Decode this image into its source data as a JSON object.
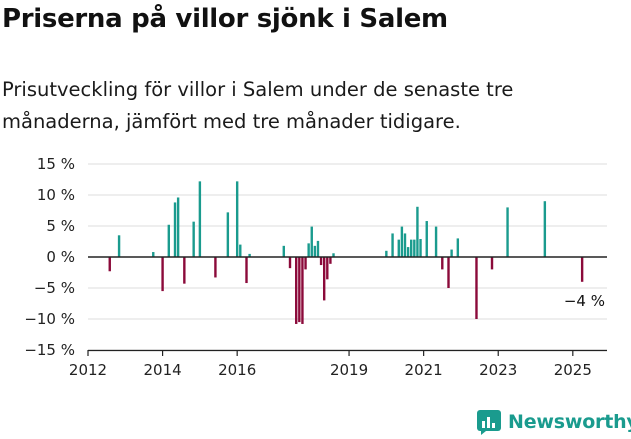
{
  "title": "Priserna på villor sjönk i Salem",
  "subtitle": "Prisutveckling för villor i Salem under de senaste tre månaderna, jämfört med tre månader tidigare.",
  "brand": {
    "name": "Newsworthy"
  },
  "colors": {
    "positive": "#1a9b8e",
    "negative": "#8b0a3a",
    "axis": "#222222",
    "grid": "#dddddd",
    "brand": "#1a9b8e"
  },
  "chart_data": {
    "type": "bar",
    "y_unit": "%",
    "ylim": [
      -15,
      15
    ],
    "xlim": [
      "2012-01",
      "2025-12"
    ],
    "y_ticks": [
      15,
      10,
      5,
      0,
      -5,
      -10,
      -15
    ],
    "y_tick_labels": [
      "15 %",
      "10 %",
      "5 %",
      "0 %",
      "−5 %",
      "−10 %",
      "−15 %"
    ],
    "x_ticks": [
      "2012",
      "2014",
      "2016",
      "2019",
      "2021",
      "2023",
      "2025"
    ],
    "grid": "horizontal",
    "last_value_label": "−4 %",
    "series": [
      {
        "dates": [
          "2012-08",
          "2012-11",
          "2013-10",
          "2014-01",
          "2014-03",
          "2014-05",
          "2014-06",
          "2014-08",
          "2014-11",
          "2015-01",
          "2015-06",
          "2015-10",
          "2016-01",
          "2016-02",
          "2016-04",
          "2016-05",
          "2017-04",
          "2017-06",
          "2017-08",
          "2017-09",
          "2017-10",
          "2017-11",
          "2017-12",
          "2018-01",
          "2018-02",
          "2018-03",
          "2018-04",
          "2018-05",
          "2018-06",
          "2018-07",
          "2018-08",
          "2018-09",
          "2018-10",
          "2020-01",
          "2020-03",
          "2020-05",
          "2020-06",
          "2020-07",
          "2020-08",
          "2020-09",
          "2020-10",
          "2020-11",
          "2020-12",
          "2021-02",
          "2021-05",
          "2021-07",
          "2021-09",
          "2021-10",
          "2021-12",
          "2022-06",
          "2022-11",
          "2023-04",
          "2024-04",
          "2025-04"
        ],
        "values": [
          -2.3,
          3.5,
          0.8,
          -5.5,
          5.2,
          8.8,
          9.6,
          -4.3,
          5.7,
          12.2,
          -3.3,
          7.2,
          12.2,
          2.0,
          -4.2,
          0.5,
          1.8,
          -1.8,
          -10.8,
          -10.5,
          -10.8,
          -2.0,
          2.2,
          4.9,
          1.8,
          2.6,
          -1.3,
          -7.0,
          -3.6,
          -1.1,
          0.6,
          0.0,
          0.0,
          1.0,
          3.8,
          2.8,
          4.9,
          3.8,
          1.6,
          2.8,
          2.8,
          8.1,
          2.9,
          5.8,
          4.9,
          -2.0,
          -5.0,
          1.2,
          3.0,
          -10.0,
          -2.0,
          8.0,
          9.0,
          -4.0
        ]
      }
    ]
  }
}
